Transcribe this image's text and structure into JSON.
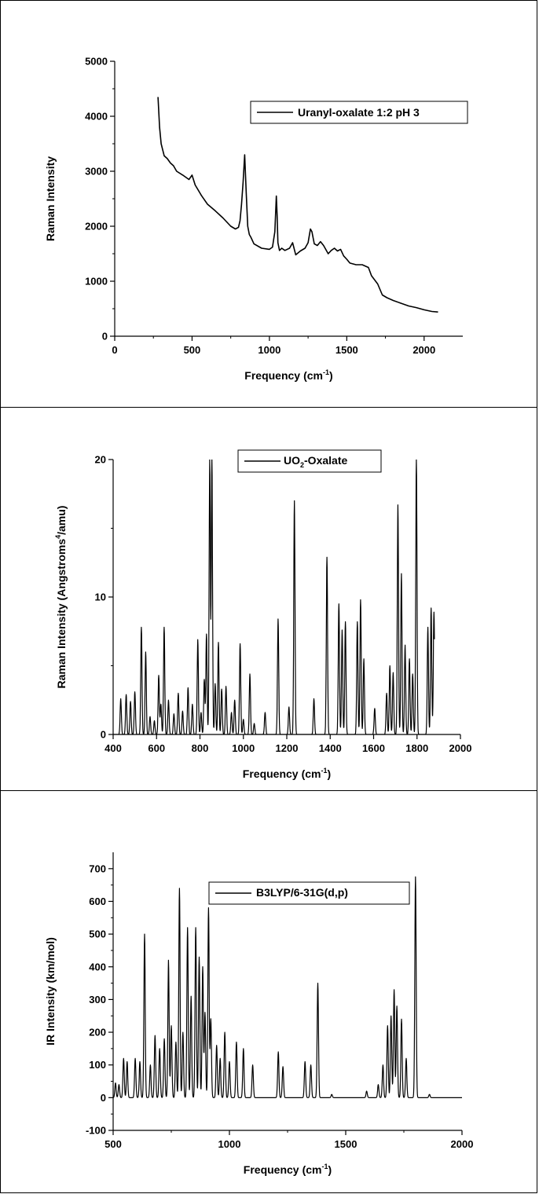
{
  "chart_data": [
    {
      "type": "line",
      "xlabel": "Frequency",
      "xlabel_unit_pre": "(cm",
      "xlabel_sup": "-1",
      "xlabel_unit_post": ")",
      "ylabel": "Raman Intensity",
      "xlim": [
        0,
        2250
      ],
      "ylim": [
        0,
        5000
      ],
      "xticks": [
        0,
        500,
        1000,
        1500,
        2000
      ],
      "xtick_labels": [
        "0",
        "500",
        "1000",
        "1500",
        "2000"
      ],
      "yticks": [
        0,
        1000,
        2000,
        3000,
        4000,
        5000
      ],
      "ytick_labels": [
        "0",
        "1000",
        "2000",
        "3000",
        "4000",
        "5000"
      ],
      "legend_position": "top-right",
      "series": [
        {
          "name": "Uranyl-oxalate 1:2 pH 3",
          "color": "#000000",
          "x": [
            280,
            290,
            300,
            320,
            340,
            360,
            380,
            400,
            440,
            480,
            500,
            520,
            560,
            600,
            650,
            700,
            750,
            780,
            800,
            810,
            820,
            830,
            840,
            850,
            860,
            870,
            880,
            900,
            950,
            1000,
            1020,
            1035,
            1045,
            1050,
            1055,
            1065,
            1080,
            1100,
            1130,
            1150,
            1170,
            1200,
            1230,
            1250,
            1265,
            1275,
            1290,
            1310,
            1330,
            1350,
            1380,
            1400,
            1420,
            1440,
            1460,
            1480,
            1500,
            1520,
            1560,
            1600,
            1640,
            1660,
            1700,
            1730,
            1760,
            1800,
            1850,
            1900,
            1950,
            2000,
            2050,
            2090
          ],
          "y": [
            4350,
            3800,
            3500,
            3280,
            3230,
            3150,
            3100,
            3000,
            2930,
            2850,
            2930,
            2750,
            2560,
            2400,
            2280,
            2150,
            2000,
            1950,
            1980,
            2100,
            2400,
            2800,
            3300,
            2600,
            2000,
            1850,
            1800,
            1680,
            1600,
            1580,
            1620,
            1900,
            2550,
            2200,
            1700,
            1560,
            1600,
            1560,
            1600,
            1700,
            1480,
            1550,
            1600,
            1700,
            1950,
            1900,
            1680,
            1650,
            1720,
            1650,
            1500,
            1560,
            1600,
            1550,
            1580,
            1460,
            1400,
            1330,
            1300,
            1300,
            1250,
            1100,
            950,
            750,
            700,
            650,
            600,
            550,
            520,
            480,
            450,
            440
          ]
        }
      ]
    },
    {
      "type": "line",
      "xlabel": "Frequency",
      "xlabel_unit_pre": "(cm",
      "xlabel_sup": "-1",
      "xlabel_unit_post": ")",
      "ylabel": "Raman Intensity (Angstroms",
      "ylabel_sup": "4",
      "ylabel_post": "/amu)",
      "xlim": [
        400,
        2000
      ],
      "ylim": [
        0,
        20
      ],
      "xticks": [
        400,
        600,
        800,
        1000,
        1200,
        1400,
        1600,
        1800,
        2000
      ],
      "xtick_labels": [
        "400",
        "600",
        "800",
        "1000",
        "1200",
        "1400",
        "1600",
        "1800",
        "2000"
      ],
      "yticks": [
        0,
        10,
        20
      ],
      "ytick_labels": [
        "0",
        "10",
        "20"
      ],
      "legend_position": "top-center",
      "series": [
        {
          "name_pre": "UO",
          "name_sub": "2",
          "name_post": "-Oxalate",
          "color": "#000000",
          "peaks": [
            [
              435,
              2.6
            ],
            [
              460,
              2.9
            ],
            [
              480,
              2.4
            ],
            [
              500,
              3.1
            ],
            [
              530,
              7.8
            ],
            [
              550,
              6.0
            ],
            [
              570,
              1.3
            ],
            [
              590,
              1.0
            ],
            [
              610,
              4.3
            ],
            [
              620,
              2.2
            ],
            [
              635,
              7.8
            ],
            [
              655,
              2.5
            ],
            [
              680,
              1.5
            ],
            [
              700,
              3.0
            ],
            [
              720,
              1.7
            ],
            [
              745,
              3.4
            ],
            [
              765,
              2.2
            ],
            [
              790,
              6.9
            ],
            [
              805,
              1.6
            ],
            [
              820,
              4.0
            ],
            [
              830,
              7.3
            ],
            [
              845,
              20
            ],
            [
              855,
              20
            ],
            [
              870,
              3.7
            ],
            [
              885,
              6.7
            ],
            [
              900,
              3.3
            ],
            [
              920,
              3.5
            ],
            [
              945,
              1.6
            ],
            [
              960,
              2.5
            ],
            [
              985,
              6.6
            ],
            [
              1000,
              1.1
            ],
            [
              1030,
              4.4
            ],
            [
              1050,
              0.8
            ],
            [
              1100,
              1.6
            ],
            [
              1160,
              8.4
            ],
            [
              1210,
              2.0
            ],
            [
              1235,
              17.0
            ],
            [
              1325,
              2.6
            ],
            [
              1385,
              12.9
            ],
            [
              1440,
              9.5
            ],
            [
              1455,
              7.6
            ],
            [
              1470,
              8.2
            ],
            [
              1525,
              8.2
            ],
            [
              1540,
              9.8
            ],
            [
              1555,
              5.5
            ],
            [
              1605,
              1.9
            ],
            [
              1660,
              3.0
            ],
            [
              1675,
              5.0
            ],
            [
              1690,
              4.5
            ],
            [
              1712,
              16.7
            ],
            [
              1728,
              11.7
            ],
            [
              1745,
              6.5
            ],
            [
              1765,
              5.5
            ],
            [
              1780,
              4.4
            ],
            [
              1797,
              20
            ],
            [
              1850,
              7.8
            ],
            [
              1865,
              9.2
            ],
            [
              1878,
              8.9
            ]
          ]
        }
      ]
    },
    {
      "type": "line",
      "xlabel": "Frequency",
      "xlabel_unit_pre": "(cm",
      "xlabel_sup": "-1",
      "xlabel_unit_post": ")",
      "ylabel": "IR Intensity (km/mol)",
      "xlim": [
        500,
        2000
      ],
      "ylim": [
        -100,
        750
      ],
      "xticks": [
        500,
        1000,
        1500,
        2000
      ],
      "xtick_labels": [
        "500",
        "1000",
        "1500",
        "2000"
      ],
      "yticks": [
        -100,
        0,
        100,
        200,
        300,
        400,
        500,
        600,
        700
      ],
      "ytick_labels": [
        "-100",
        "0",
        "100",
        "200",
        "300",
        "400",
        "500",
        "600",
        "700"
      ],
      "legend_position": "top-center",
      "series": [
        {
          "name": "B3LYP/6-31G(d,p)",
          "color": "#000000",
          "peaks": [
            [
              510,
              45
            ],
            [
              525,
              40
            ],
            [
              545,
              120
            ],
            [
              560,
              110
            ],
            [
              595,
              120
            ],
            [
              615,
              110
            ],
            [
              635,
              500
            ],
            [
              660,
              100
            ],
            [
              680,
              190
            ],
            [
              700,
              150
            ],
            [
              720,
              180
            ],
            [
              738,
              420
            ],
            [
              750,
              220
            ],
            [
              770,
              170
            ],
            [
              785,
              640
            ],
            [
              800,
              200
            ],
            [
              820,
              520
            ],
            [
              835,
              310
            ],
            [
              855,
              520
            ],
            [
              870,
              430
            ],
            [
              885,
              400
            ],
            [
              895,
              260
            ],
            [
              910,
              580
            ],
            [
              920,
              240
            ],
            [
              945,
              160
            ],
            [
              960,
              120
            ],
            [
              980,
              200
            ],
            [
              1000,
              110
            ],
            [
              1030,
              170
            ],
            [
              1060,
              150
            ],
            [
              1100,
              100
            ],
            [
              1210,
              140
            ],
            [
              1230,
              95
            ],
            [
              1325,
              110
            ],
            [
              1350,
              100
            ],
            [
              1380,
              350
            ],
            [
              1440,
              10
            ],
            [
              1590,
              20
            ],
            [
              1640,
              40
            ],
            [
              1660,
              100
            ],
            [
              1680,
              220
            ],
            [
              1695,
              250
            ],
            [
              1708,
              330
            ],
            [
              1720,
              280
            ],
            [
              1740,
              240
            ],
            [
              1760,
              120
            ],
            [
              1800,
              675
            ],
            [
              1860,
              10
            ]
          ]
        }
      ]
    }
  ]
}
